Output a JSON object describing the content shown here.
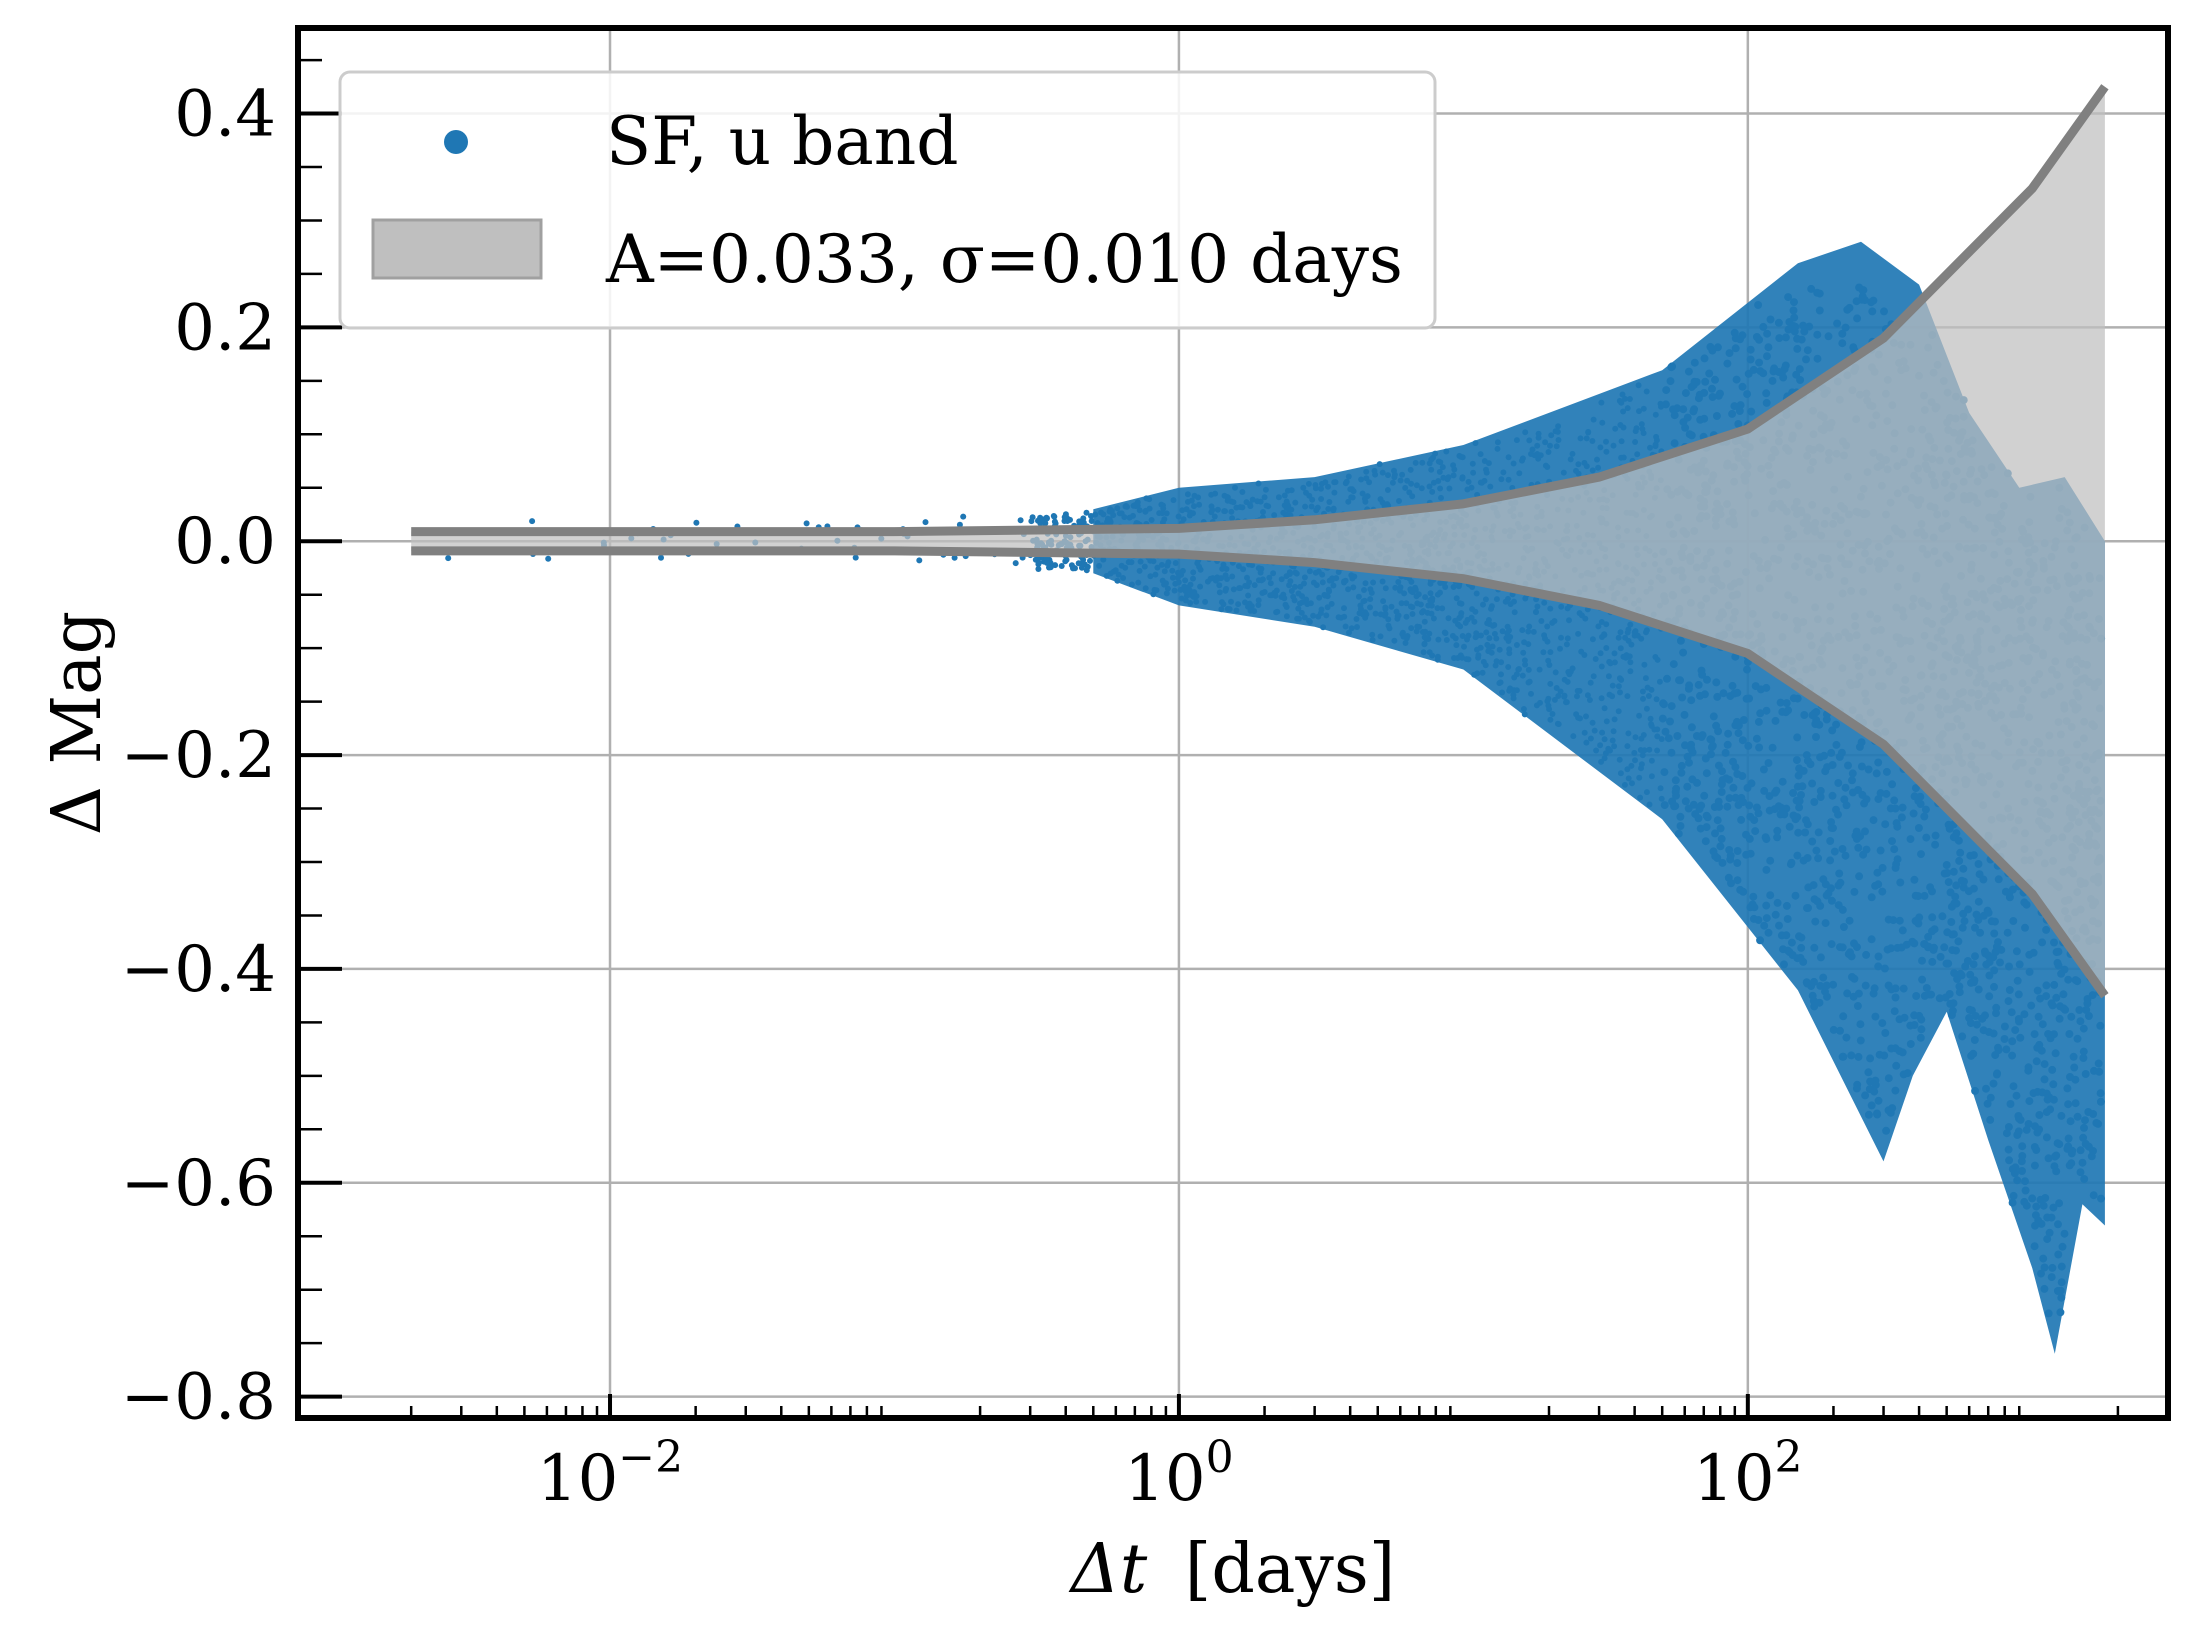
{
  "chart_data": {
    "type": "scatter",
    "xscale": "log",
    "xlim": [
      0.0008,
      3000
    ],
    "ylim": [
      -0.82,
      0.48
    ],
    "xlabel_main": "Δt",
    "xlabel_unit": "[days]",
    "ylabel": "Δ Mag",
    "grid": true,
    "legend_position": "top-left",
    "x_ticks": [
      {
        "value": 0.01,
        "base": "10",
        "exp": "−2"
      },
      {
        "value": 1,
        "base": "10",
        "exp": "0"
      },
      {
        "value": 100,
        "base": "10",
        "exp": "2"
      }
    ],
    "y_ticks": [
      {
        "value": 0.4,
        "label": "0.4"
      },
      {
        "value": 0.2,
        "label": "0.2"
      },
      {
        "value": 0.0,
        "label": "0.0"
      },
      {
        "value": -0.2,
        "label": "−0.2"
      },
      {
        "value": -0.4,
        "label": "−0.4"
      },
      {
        "value": -0.6,
        "label": "−0.6"
      },
      {
        "value": -0.8,
        "label": "−0.8"
      }
    ],
    "series": [
      {
        "name": "SF, u band",
        "kind": "scatter",
        "color": "#1f77b4",
        "note": "dense scatter of magnitude differences vs time lag",
        "envelope_upper": [
          [
            0.002,
            0.02
          ],
          [
            0.006,
            0.02
          ],
          [
            0.1,
            0.02
          ],
          [
            0.5,
            0.03
          ],
          [
            1,
            0.05
          ],
          [
            3,
            0.06
          ],
          [
            10,
            0.09
          ],
          [
            50,
            0.16
          ],
          [
            150,
            0.26
          ],
          [
            250,
            0.28
          ],
          [
            400,
            0.24
          ],
          [
            600,
            0.12
          ],
          [
            900,
            0.05
          ],
          [
            1300,
            0.06
          ],
          [
            1800,
            0.0
          ]
        ],
        "envelope_lower": [
          [
            0.002,
            -0.02
          ],
          [
            0.006,
            -0.02
          ],
          [
            0.1,
            -0.02
          ],
          [
            0.5,
            -0.03
          ],
          [
            1,
            -0.06
          ],
          [
            3,
            -0.08
          ],
          [
            10,
            -0.12
          ],
          [
            50,
            -0.26
          ],
          [
            150,
            -0.42
          ],
          [
            300,
            -0.58
          ],
          [
            380,
            -0.5
          ],
          [
            500,
            -0.44
          ],
          [
            700,
            -0.56
          ],
          [
            1000,
            -0.68
          ],
          [
            1200,
            -0.76
          ],
          [
            1500,
            -0.62
          ],
          [
            1800,
            -0.64
          ]
        ]
      },
      {
        "name": "A=0.033, σ=0.010 days",
        "kind": "band",
        "color": "#808080",
        "fill": "#bfbfbf",
        "points": [
          {
            "x": 0.002,
            "upper": 0.009,
            "lower": -0.009
          },
          {
            "x": 0.01,
            "upper": 0.009,
            "lower": -0.009
          },
          {
            "x": 0.1,
            "upper": 0.009,
            "lower": -0.009
          },
          {
            "x": 1,
            "upper": 0.012,
            "lower": -0.012
          },
          {
            "x": 3,
            "upper": 0.02,
            "lower": -0.02
          },
          {
            "x": 10,
            "upper": 0.035,
            "lower": -0.035
          },
          {
            "x": 30,
            "upper": 0.06,
            "lower": -0.06
          },
          {
            "x": 100,
            "upper": 0.105,
            "lower": -0.105
          },
          {
            "x": 300,
            "upper": 0.19,
            "lower": -0.19
          },
          {
            "x": 1000,
            "upper": 0.33,
            "lower": -0.33
          },
          {
            "x": 1800,
            "upper": 0.425,
            "lower": -0.425
          }
        ]
      }
    ],
    "legend": [
      {
        "label": "SF, u band",
        "marker": "dot"
      },
      {
        "label": "A=0.033, σ=0.010 days",
        "marker": "patch"
      }
    ]
  }
}
